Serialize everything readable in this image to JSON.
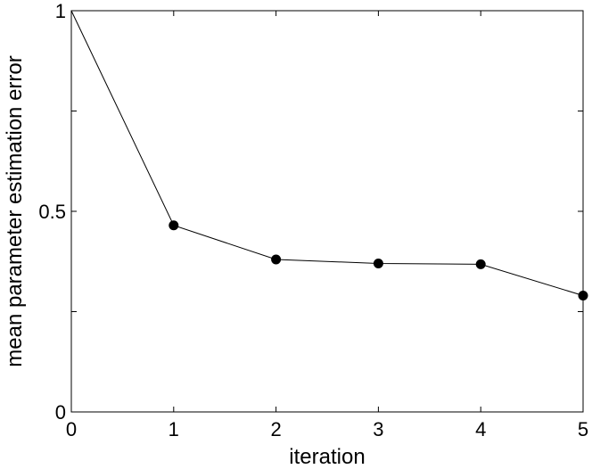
{
  "chart_data": {
    "type": "line",
    "title": "",
    "xlabel": "iteration",
    "ylabel": "mean parameter estimation error",
    "x": [
      0,
      1,
      2,
      3,
      4,
      5
    ],
    "xticks": [
      "0",
      "1",
      "2",
      "3",
      "4",
      "5"
    ],
    "yticks": [
      "0",
      "0.5",
      "1"
    ],
    "xlim": [
      0,
      5
    ],
    "ylim": [
      0,
      1
    ],
    "grid": false,
    "series": [
      {
        "values": [
          1.0,
          0.465,
          0.38,
          0.37,
          0.368,
          0.29
        ],
        "markers": [
          false,
          true,
          true,
          true,
          true,
          true
        ],
        "color": "#000000"
      }
    ]
  }
}
